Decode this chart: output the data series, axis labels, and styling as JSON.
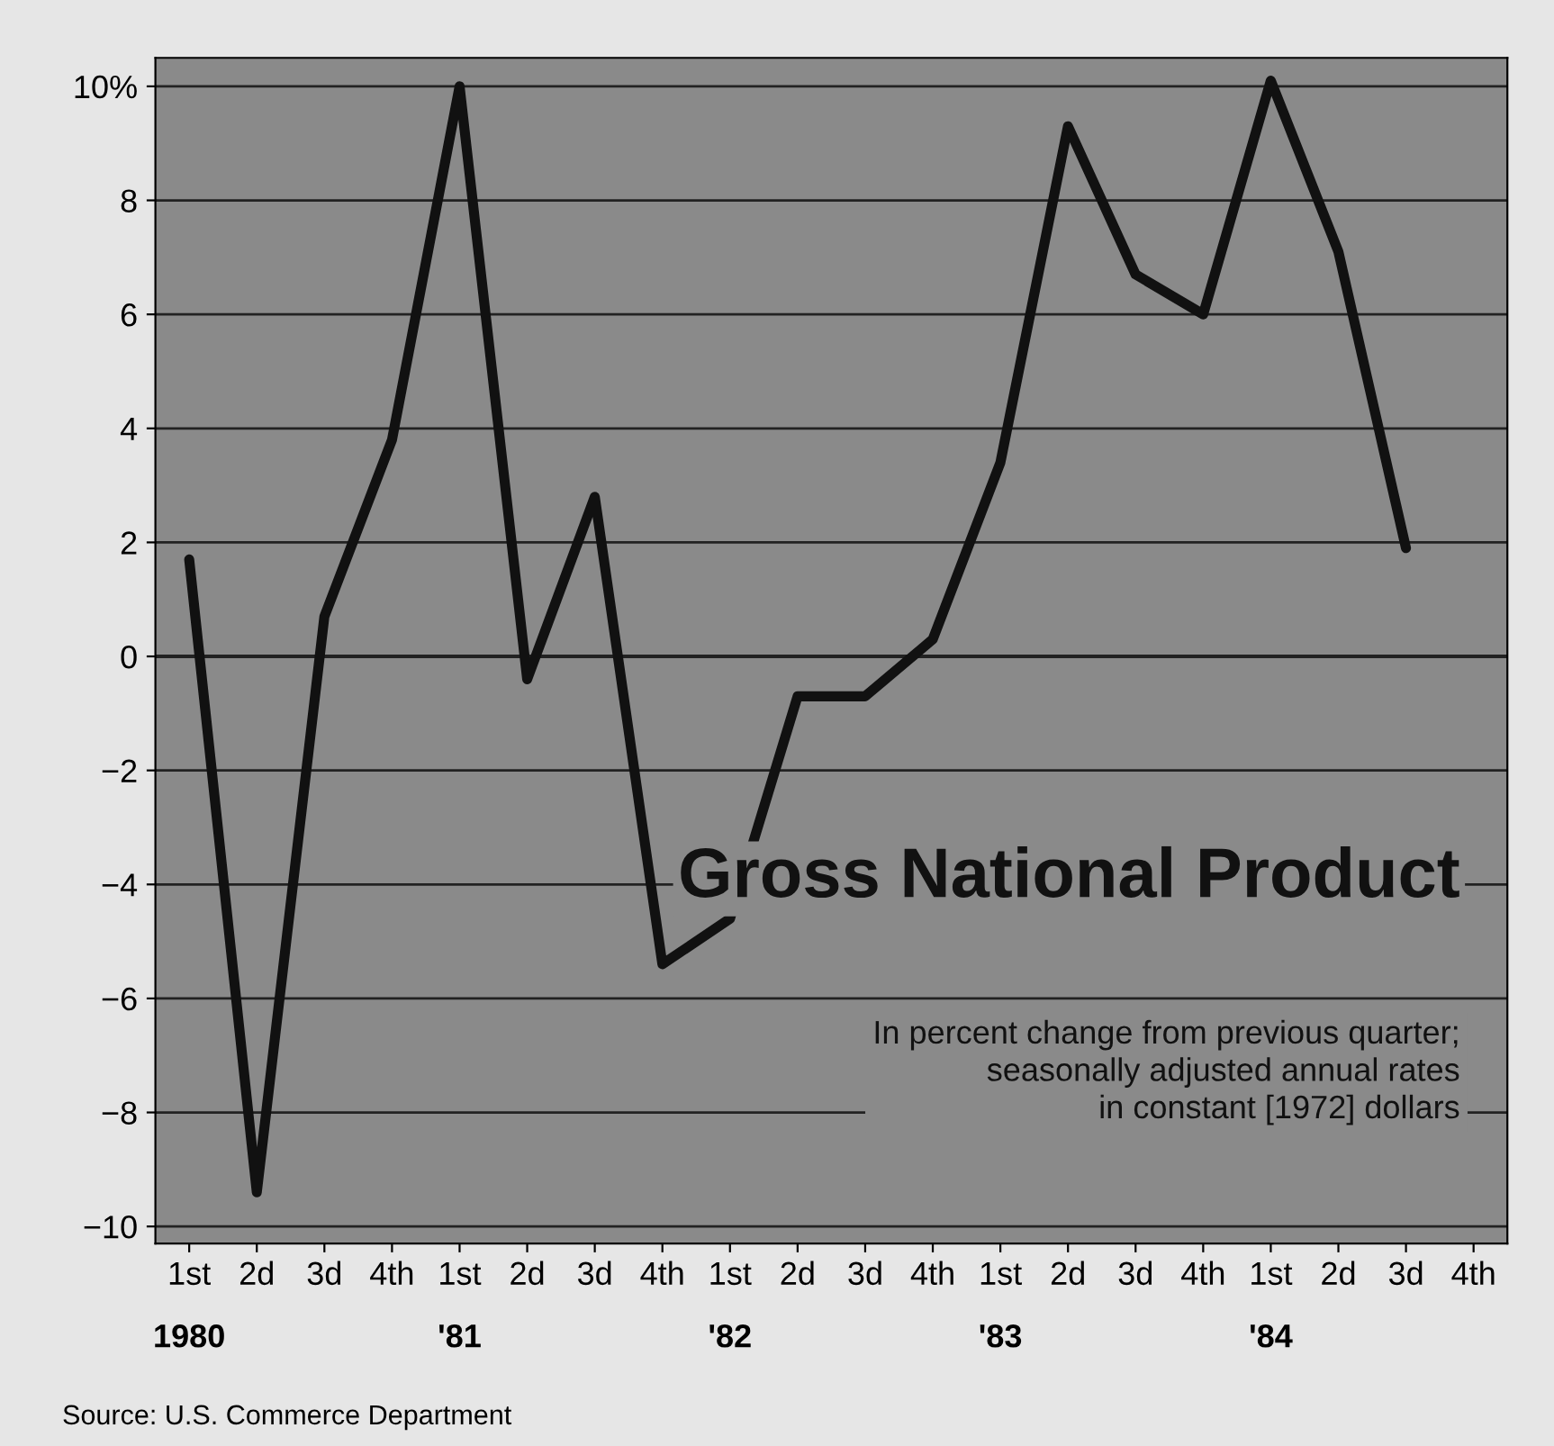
{
  "chart_data": {
    "type": "line",
    "title": "Gross National Product",
    "subtitle": "In percent change from previous quarter;\nseasonally adjusted annual rates\nin constant [1972] dollars",
    "categories": [
      "1st",
      "2d",
      "3d",
      "4th",
      "1st",
      "2d",
      "3d",
      "4th",
      "1st",
      "2d",
      "3d",
      "4th",
      "1st",
      "2d",
      "3d",
      "4th",
      "1st",
      "2d",
      "3d",
      "4th"
    ],
    "series": [
      {
        "color": "#111111",
        "values": [
          1.7,
          -9.4,
          0.7,
          3.8,
          10.0,
          -0.4,
          2.8,
          -5.4,
          -4.6,
          -0.7,
          -0.7,
          0.3,
          3.4,
          9.3,
          6.7,
          6.0,
          10.1,
          7.1,
          1.9,
          null
        ]
      }
    ],
    "ylim": [
      -10.3,
      10.5
    ],
    "yticks": [
      {
        "value": -10,
        "label": "−10"
      },
      {
        "value": -8,
        "label": "−8"
      },
      {
        "value": -6,
        "label": "−6"
      },
      {
        "value": -4,
        "label": "−4"
      },
      {
        "value": -2,
        "label": "−2"
      },
      0,
      2,
      4,
      6,
      8,
      {
        "value": 10,
        "label": "10%"
      }
    ],
    "grid": "y",
    "annotations": [
      "1980",
      "'81",
      "'82",
      "'83",
      "'84",
      "Source: U.S. Commerce Department"
    ]
  }
}
